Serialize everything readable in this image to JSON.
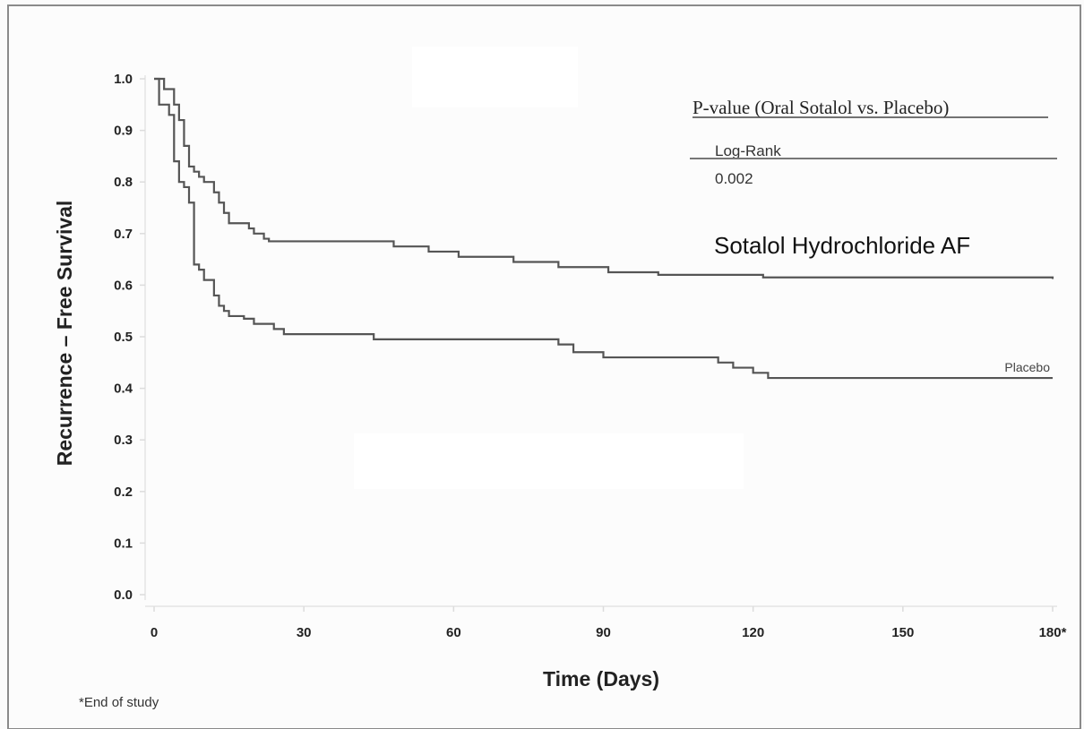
{
  "chart_data": {
    "type": "line",
    "subtype": "kaplan-meier-step",
    "xlabel": "Time (Days)",
    "ylabel": "Recurrence – Free Survival",
    "xlim": [
      0,
      180
    ],
    "ylim": [
      0,
      1.0
    ],
    "x_ticks": [
      0,
      30,
      60,
      90,
      120,
      150,
      180
    ],
    "x_tick_labels": [
      "0",
      "30",
      "60",
      "90",
      "120",
      "150",
      "180*"
    ],
    "y_ticks": [
      0.0,
      0.1,
      0.2,
      0.3,
      0.4,
      0.5,
      0.6,
      0.7,
      0.8,
      0.9,
      1.0
    ],
    "y_tick_labels": [
      "0.0",
      "0.1",
      "0.2",
      "0.3",
      "0.4",
      "0.5",
      "0.6",
      "0.7",
      "0.8",
      "0.9",
      "1.0"
    ],
    "grid": false,
    "series": [
      {
        "name": "Sotalol Hydrochloride AF",
        "color": "#555555",
        "points": [
          [
            0,
            1.0
          ],
          [
            2,
            0.98
          ],
          [
            4,
            0.95
          ],
          [
            5,
            0.92
          ],
          [
            6,
            0.87
          ],
          [
            7,
            0.83
          ],
          [
            8,
            0.82
          ],
          [
            9,
            0.81
          ],
          [
            10,
            0.8
          ],
          [
            12,
            0.78
          ],
          [
            13,
            0.76
          ],
          [
            14,
            0.74
          ],
          [
            15,
            0.72
          ],
          [
            19,
            0.71
          ],
          [
            20,
            0.7
          ],
          [
            22,
            0.69
          ],
          [
            23,
            0.685
          ],
          [
            48,
            0.675
          ],
          [
            55,
            0.665
          ],
          [
            61,
            0.655
          ],
          [
            72,
            0.645
          ],
          [
            81,
            0.635
          ],
          [
            91,
            0.625
          ],
          [
            101,
            0.62
          ],
          [
            122,
            0.615
          ],
          [
            180,
            0.612
          ]
        ]
      },
      {
        "name": "Placebo",
        "color": "#555555",
        "points": [
          [
            0,
            1.0
          ],
          [
            1,
            0.95
          ],
          [
            3,
            0.93
          ],
          [
            4,
            0.84
          ],
          [
            5,
            0.8
          ],
          [
            6,
            0.79
          ],
          [
            7,
            0.76
          ],
          [
            8,
            0.64
          ],
          [
            9,
            0.63
          ],
          [
            10,
            0.61
          ],
          [
            12,
            0.58
          ],
          [
            13,
            0.56
          ],
          [
            14,
            0.55
          ],
          [
            15,
            0.54
          ],
          [
            18,
            0.535
          ],
          [
            20,
            0.525
          ],
          [
            24,
            0.515
          ],
          [
            26,
            0.505
          ],
          [
            44,
            0.495
          ],
          [
            81,
            0.485
          ],
          [
            84,
            0.47
          ],
          [
            90,
            0.46
          ],
          [
            113,
            0.45
          ],
          [
            116,
            0.44
          ],
          [
            120,
            0.43
          ],
          [
            123,
            0.42
          ],
          [
            180,
            0.42
          ]
        ]
      }
    ],
    "annotations": {
      "pvalue_header": "P-value (Oral Sotalol vs. Placebo)",
      "test_name": "Log-Rank",
      "test_value": "0.002",
      "footnote": "*End of study"
    }
  }
}
